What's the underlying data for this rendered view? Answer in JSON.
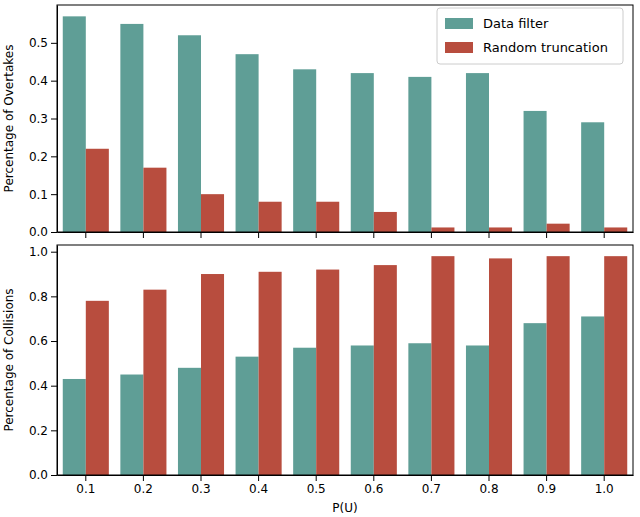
{
  "chart_data": [
    {
      "type": "bar",
      "y_label": "Percentage of Overtakes",
      "categories": [
        "0.1",
        "0.2",
        "0.3",
        "0.4",
        "0.5",
        "0.6",
        "0.7",
        "0.8",
        "0.9",
        "1.0"
      ],
      "series": [
        {
          "name": "Data filter",
          "color": "#5f9e96",
          "values": [
            0.57,
            0.55,
            0.52,
            0.47,
            0.43,
            0.42,
            0.41,
            0.42,
            0.32,
            0.29
          ]
        },
        {
          "name": "Random truncation",
          "color": "#b84d3e",
          "values": [
            0.22,
            0.17,
            0.1,
            0.08,
            0.08,
            0.053,
            0.012,
            0.012,
            0.022,
            0.012
          ]
        }
      ],
      "ylim": [
        0,
        0.6
      ],
      "yticks": [
        {
          "value": 0,
          "label": "0.0"
        },
        0.1,
        0.2,
        0.3,
        0.4,
        0.5
      ],
      "legend": "upper right",
      "tick_labels": "y"
    },
    {
      "type": "bar",
      "x_label": "P(U)",
      "y_label": "Percentage of Collisions",
      "categories": [
        "0.1",
        "0.2",
        "0.3",
        "0.4",
        "0.5",
        "0.6",
        "0.7",
        "0.8",
        "0.9",
        "1.0"
      ],
      "series": [
        {
          "name": "Data filter",
          "color": "#5f9e96",
          "values": [
            0.43,
            0.45,
            0.48,
            0.53,
            0.57,
            0.58,
            0.59,
            0.58,
            0.68,
            0.71
          ]
        },
        {
          "name": "Random truncation",
          "color": "#b84d3e",
          "values": [
            0.78,
            0.83,
            0.9,
            0.91,
            0.92,
            0.94,
            0.98,
            0.97,
            0.98,
            0.98
          ]
        }
      ],
      "ylim": [
        0,
        1.03
      ],
      "yticks": [
        {
          "value": 0,
          "label": "0.0"
        },
        0.2,
        0.4,
        0.6,
        0.8,
        {
          "value": 1,
          "label": "1.0"
        }
      ]
    }
  ]
}
